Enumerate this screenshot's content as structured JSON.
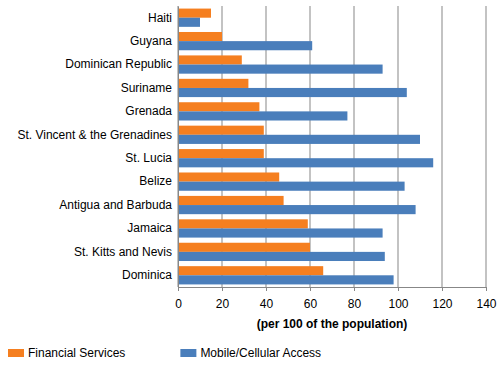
{
  "chart_data": {
    "type": "bar",
    "orientation": "horizontal",
    "grid": true,
    "legend": "bottom",
    "x_label": "(per 100 of the population)",
    "categories": [
      "Haiti",
      "Guyana",
      "Dominican Republic",
      "Suriname",
      "Grenada",
      "St. Vincent & the Grenadines",
      "St. Lucia",
      "Belize",
      "Antigua and Barbuda",
      "Jamaica",
      "St. Kitts and Nevis",
      "Dominica"
    ],
    "series": [
      {
        "name": "Financial Services",
        "color": "#f57f20",
        "values": [
          15,
          20,
          29,
          32,
          37,
          39,
          39,
          46,
          48,
          59,
          60,
          66
        ]
      },
      {
        "name": "Mobile/Cellular Access",
        "color": "#4a7ebb",
        "values": [
          10,
          61,
          93,
          104,
          77,
          110,
          116,
          103,
          108,
          93,
          94,
          98
        ]
      }
    ],
    "xlim": [
      0,
      140
    ],
    "xticks": [
      0,
      20,
      40,
      60,
      80,
      100,
      120,
      140
    ]
  }
}
